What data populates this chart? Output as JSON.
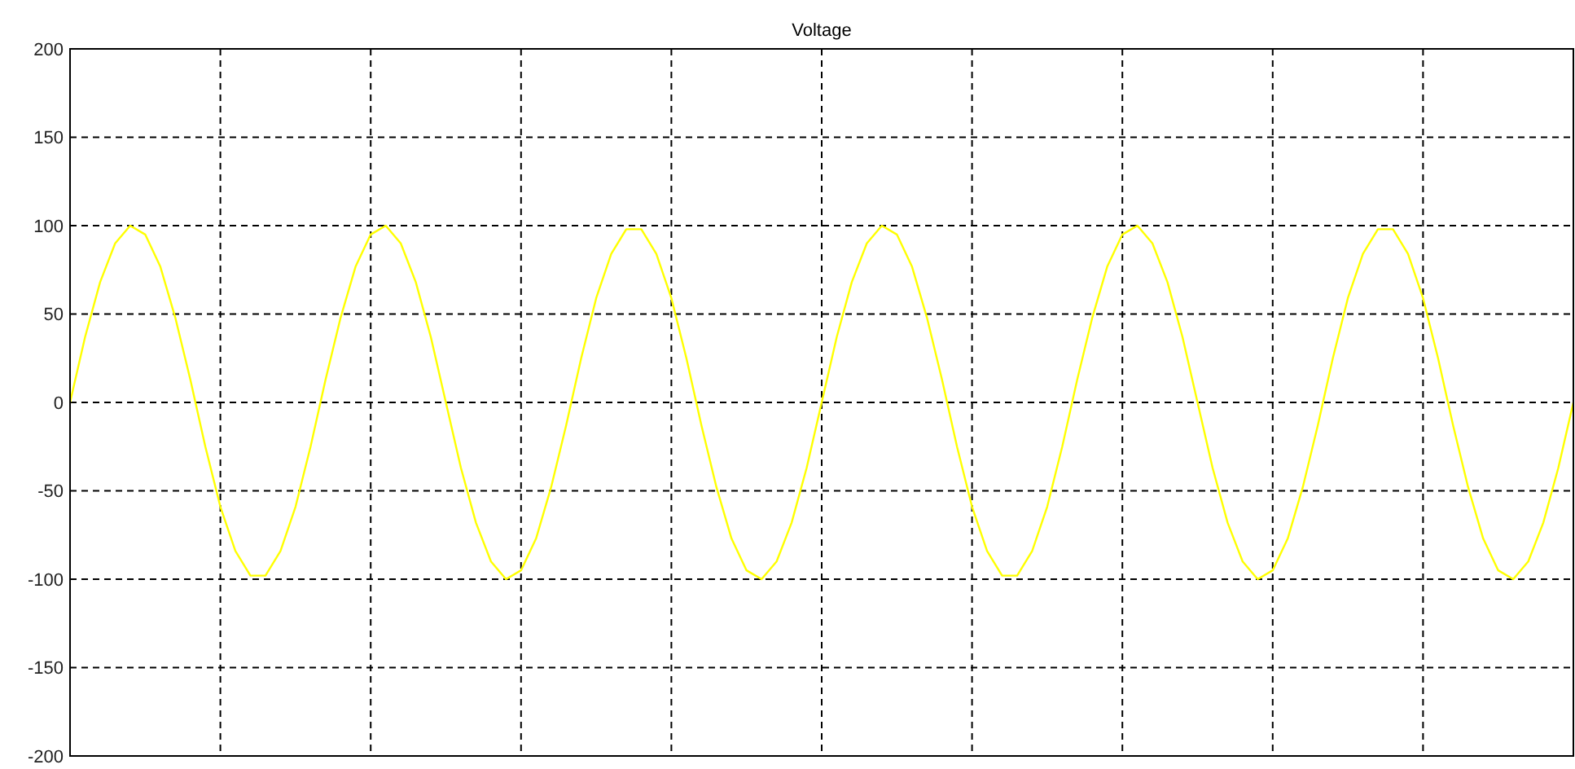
{
  "chart_data": {
    "type": "line",
    "title": "Voltage",
    "categories": [
      null,
      null,
      null,
      null,
      null,
      null,
      null,
      null,
      null,
      null,
      null,
      null,
      null,
      null,
      null,
      null,
      null,
      null,
      null,
      null,
      null,
      null,
      null,
      null,
      null,
      null,
      null,
      null,
      null,
      null,
      null,
      null,
      null,
      null,
      null,
      null,
      null,
      null,
      null,
      null,
      null,
      null,
      null,
      null,
      null,
      null,
      null,
      null,
      null,
      null,
      null,
      null,
      null,
      null,
      null,
      null,
      null,
      null,
      null,
      null,
      null,
      null,
      null,
      null,
      null,
      null,
      null,
      null,
      null,
      null,
      null,
      null,
      null,
      null,
      null,
      null,
      null,
      null,
      null,
      null,
      null,
      null,
      null,
      null,
      null,
      null,
      null,
      null,
      null,
      null,
      null,
      null,
      null,
      null,
      null,
      null,
      null,
      null,
      null,
      null,
      null
    ],
    "series": [
      {
        "color": "#ffff00",
        "values": [
          0,
          37,
          68,
          90,
          100,
          95,
          77,
          48,
          13,
          -25,
          -59,
          -84,
          -98,
          -98,
          -84,
          -59,
          -25,
          13,
          48,
          77,
          95,
          100,
          90,
          68,
          37,
          0,
          -37,
          -68,
          -90,
          -100,
          -95,
          -77,
          -48,
          -13,
          25,
          59,
          84,
          98,
          98,
          84,
          59,
          25,
          -13,
          -48,
          -77,
          -95,
          -100,
          -90,
          -68,
          -37,
          0,
          37,
          68,
          90,
          100,
          95,
          77,
          48,
          13,
          -25,
          -59,
          -84,
          -98,
          -98,
          -84,
          -59,
          -25,
          13,
          48,
          77,
          95,
          100,
          90,
          68,
          37,
          0,
          -37,
          -68,
          -90,
          -100,
          -95,
          -77,
          -48,
          -13,
          25,
          59,
          84,
          98,
          98,
          84,
          59,
          25,
          -13,
          -48,
          -77,
          -95,
          -100,
          -90,
          -68,
          -37,
          0
        ]
      }
    ],
    "ylim": [
      -200,
      200
    ],
    "yticks": [
      -200,
      -150,
      -100,
      -50,
      0,
      50,
      100,
      150,
      200
    ],
    "grid": true,
    "line_style": "solid"
  }
}
